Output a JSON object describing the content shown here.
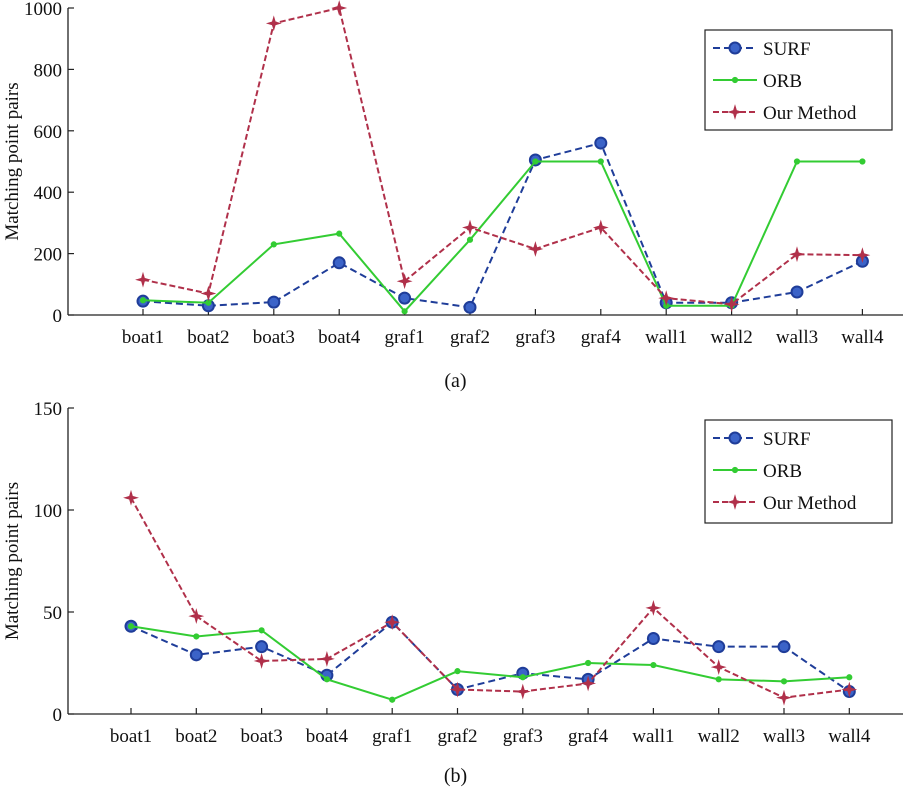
{
  "chart_data": [
    {
      "type": "line",
      "caption": "(a)",
      "ylabel": "Matching point pairs",
      "ylim": [
        0,
        1000
      ],
      "yticks": [
        0,
        200,
        400,
        600,
        800,
        1000
      ],
      "categories": [
        "boat1",
        "boat2",
        "boat3",
        "boat4",
        "graf1",
        "graf2",
        "graf3",
        "graf4",
        "wall1",
        "wall2",
        "wall3",
        "wall4"
      ],
      "legend_position": "top-right",
      "grid": false,
      "series": [
        {
          "name": "SURF",
          "color": "#1f3d99",
          "marker": "circle",
          "values": [
            45,
            30,
            42,
            170,
            55,
            25,
            505,
            560,
            40,
            40,
            75,
            175
          ]
        },
        {
          "name": "ORB",
          "color": "#33cc33",
          "marker": "dot",
          "values": [
            48,
            40,
            230,
            265,
            12,
            245,
            500,
            500,
            30,
            30,
            500,
            500
          ]
        },
        {
          "name": "Our Method",
          "color": "#b0304a",
          "marker": "star",
          "values": [
            115,
            70,
            950,
            1000,
            110,
            285,
            215,
            285,
            55,
            35,
            198,
            195
          ]
        }
      ]
    },
    {
      "type": "line",
      "caption": "(b)",
      "ylabel": "Matching point pairs",
      "ylim": [
        0,
        150
      ],
      "yticks": [
        0,
        50,
        100,
        150
      ],
      "categories": [
        "boat1",
        "boat2",
        "boat3",
        "boat4",
        "graf1",
        "graf2",
        "graf3",
        "graf4",
        "wall1",
        "wall2",
        "wall3",
        "wall4"
      ],
      "legend_position": "top-right",
      "grid": false,
      "series": [
        {
          "name": "SURF",
          "color": "#1f3d99",
          "marker": "circle",
          "values": [
            43,
            29,
            33,
            19,
            45,
            12,
            20,
            17,
            37,
            33,
            33,
            11
          ]
        },
        {
          "name": "ORB",
          "color": "#33cc33",
          "marker": "dot",
          "values": [
            43,
            38,
            41,
            17,
            7,
            21,
            18,
            25,
            24,
            17,
            16,
            18
          ]
        },
        {
          "name": "Our Method",
          "color": "#b0304a",
          "marker": "star",
          "values": [
            106,
            48,
            26,
            27,
            45,
            12,
            11,
            15,
            52,
            23,
            8,
            12
          ]
        }
      ]
    }
  ]
}
